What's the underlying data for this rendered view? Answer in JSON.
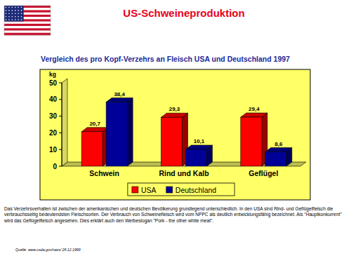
{
  "header": {
    "title": "US-Schweineproduktion"
  },
  "chart_data": {
    "type": "bar",
    "title": "Vergleich des pro Kopf-Verzehrs an Fleisch USA und Deutschland 1997",
    "y_label": "kg",
    "categories": [
      "Schwein",
      "Rind und Kalb",
      "Geflügel"
    ],
    "series": [
      {
        "name": "USA",
        "color": "#ff0000",
        "values": [
          20.7,
          29.3,
          29.4
        ],
        "value_labels": [
          "20,7",
          "29,3",
          "29,4"
        ]
      },
      {
        "name": "Deutschland",
        "color": "#000099",
        "values": [
          38.4,
          10.1,
          8.6
        ],
        "value_labels": [
          "38,4",
          "10,1",
          "8,6"
        ]
      }
    ],
    "ylim": [
      0,
      50
    ],
    "yticks": [
      0,
      10,
      20,
      30,
      40,
      50
    ],
    "grid": false,
    "data_labels": true,
    "legend": "bottom"
  },
  "notes": {
    "text": "Das Verzehrsverhalten ist zwischen der amerikanischen und deutschen Bevölkerung grundlegend unterschiedlich. In den USA sind Rind- und Geflügelfleisch die verbrauchsseitig bedeutendsten Fleischsorten. Der Verbrauch von Schweinefleisch wird vom NPPC als deutlich entwicklungsfähig bezeichnet. Als \"Hauptkonkurrent\" wird das Geflügelfleisch angesehen. Dies erklärt auch den Werbeslogan \"Pork - the other white meat\".",
    "source": "Quelle: www.usda.gov/nass/ 28.12.1999"
  }
}
